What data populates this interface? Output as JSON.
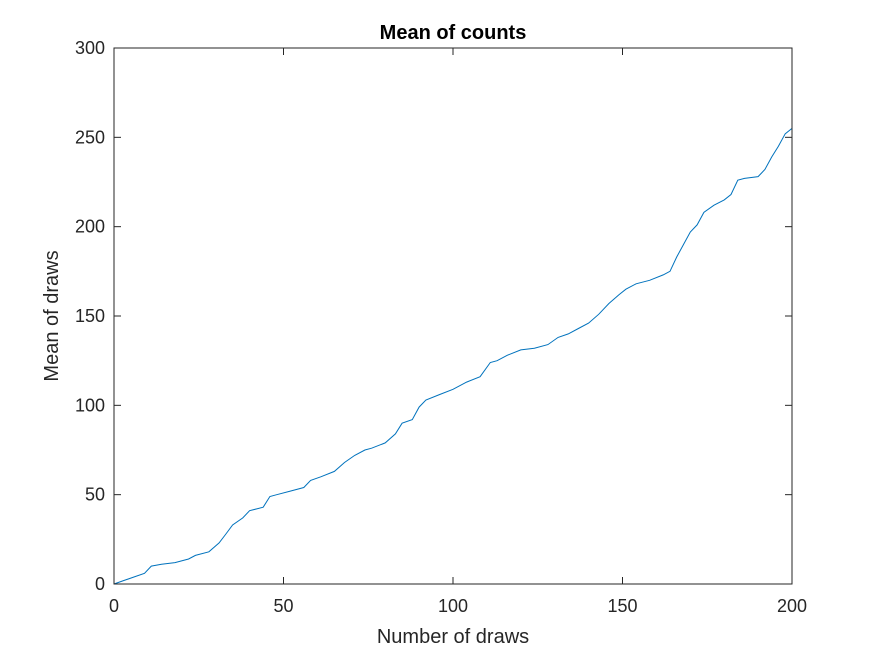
{
  "chart_data": {
    "type": "line",
    "title": "Mean of counts",
    "xlabel": "Number of draws",
    "ylabel": "Mean of draws",
    "xlim": [
      0,
      200
    ],
    "ylim": [
      0,
      300
    ],
    "xticks": [
      0,
      50,
      100,
      150,
      200
    ],
    "yticks": [
      0,
      50,
      100,
      150,
      200,
      250,
      300
    ],
    "grid": false,
    "line_color": "#0072BD",
    "series": [
      {
        "x": [
          0,
          3,
          6,
          9,
          11,
          14,
          18,
          22,
          24,
          28,
          31,
          33,
          35,
          38,
          40,
          44,
          46,
          48,
          52,
          56,
          58,
          61,
          65,
          68,
          71,
          74,
          76,
          80,
          83,
          85,
          88,
          90,
          92,
          96,
          100,
          104,
          108,
          111,
          113,
          116,
          120,
          124,
          128,
          131,
          134,
          137,
          140,
          143,
          146,
          149,
          151,
          154,
          158,
          162,
          164,
          166,
          168,
          170,
          172,
          174,
          177,
          180,
          182,
          184,
          186,
          190,
          192,
          194,
          196,
          198,
          200
        ],
        "y": [
          0,
          2,
          4,
          6,
          10,
          11,
          12,
          14,
          16,
          18,
          23,
          28,
          33,
          37,
          41,
          43,
          49,
          50,
          52,
          54,
          58,
          60,
          63,
          68,
          72,
          75,
          76,
          79,
          84,
          90,
          92,
          99,
          103,
          106,
          109,
          113,
          116,
          124,
          125,
          128,
          131,
          132,
          134,
          138,
          140,
          143,
          146,
          151,
          157,
          162,
          165,
          168,
          170,
          173,
          175,
          183,
          190,
          197,
          201,
          208,
          212,
          215,
          218,
          226,
          227,
          228,
          232,
          239,
          245,
          252,
          255
        ]
      }
    ]
  }
}
